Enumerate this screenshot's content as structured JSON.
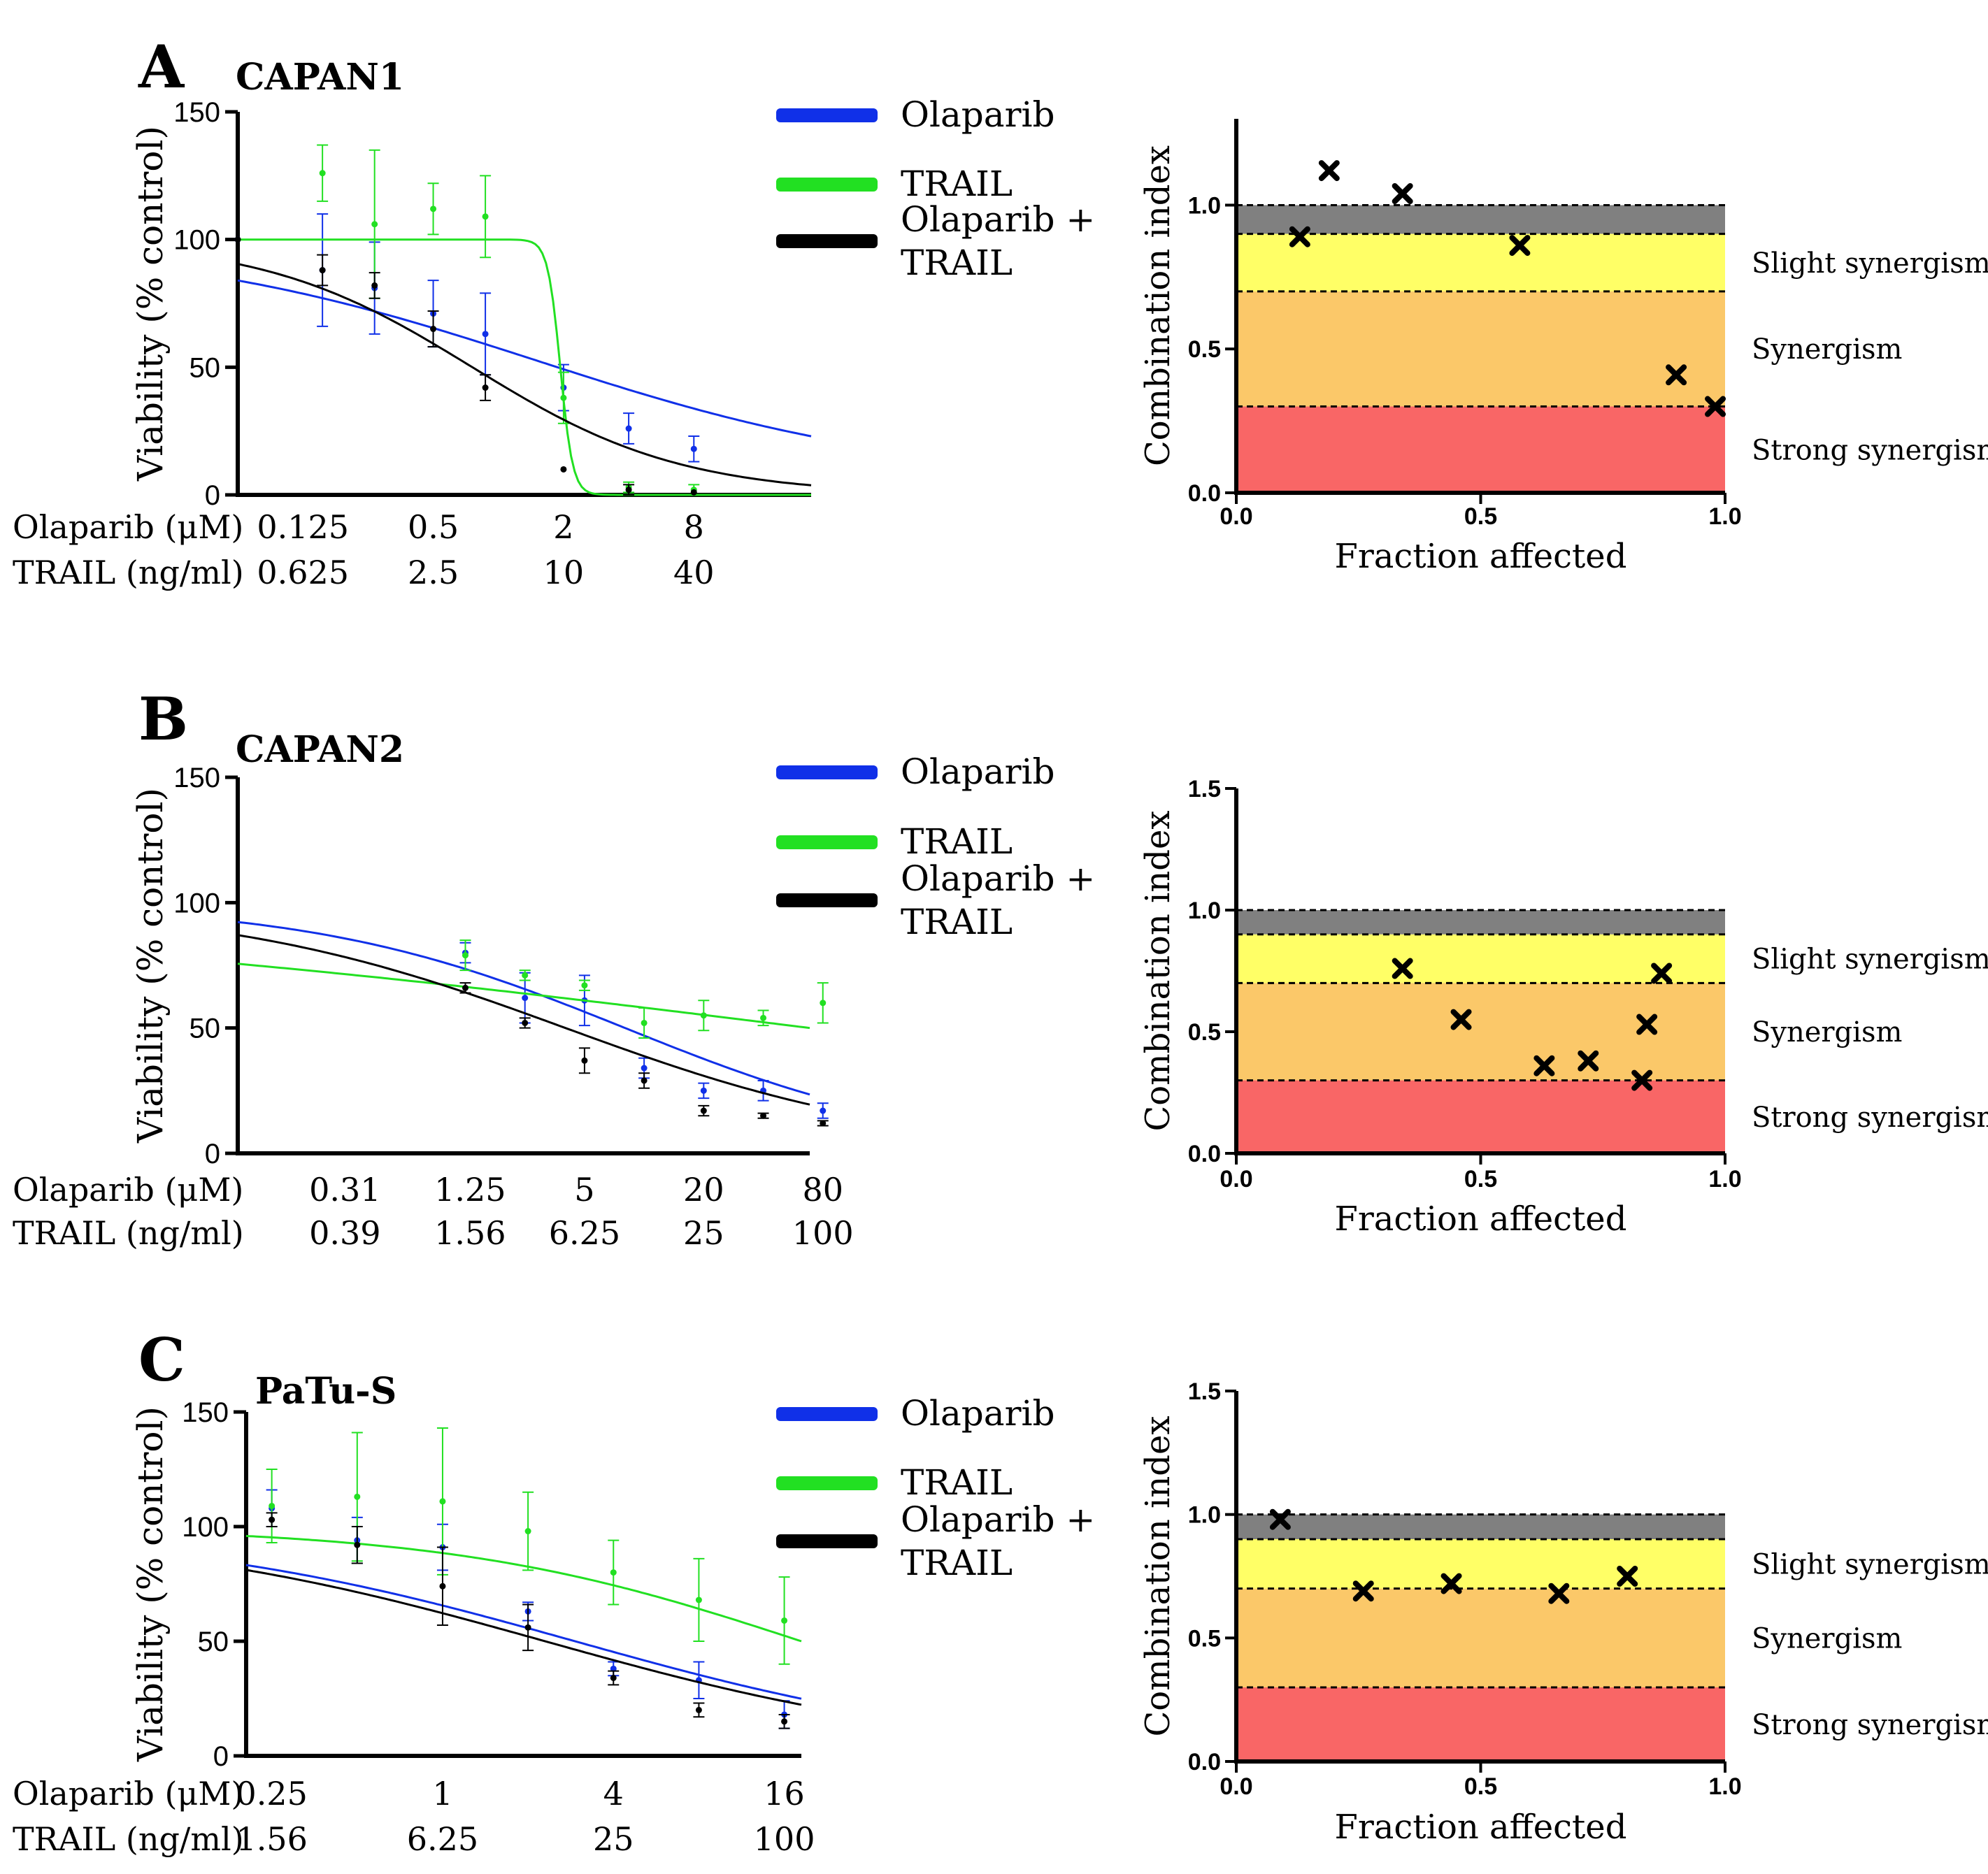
{
  "colors": {
    "olaparib": "#1030e8",
    "trail": "#22e022",
    "combo": "#000000",
    "band_additive": "#808080",
    "band_slight": "#ffff66",
    "band_synergism": "#fbc869",
    "band_strong": "#f96666"
  },
  "combination_labels": {
    "slight": "Slight synergism",
    "synergism": "Synergism",
    "strong": "Strong synergism"
  },
  "chart_data": [
    {
      "panel": "A",
      "cell_line": "CAPAN1",
      "dose_response": {
        "type": "line",
        "ylabel": "Viability (% control)",
        "ylim": [
          0,
          150
        ],
        "yticks": [
          0,
          50,
          100,
          150
        ],
        "xlim_log2_olaparib": [
          -4,
          4.8
        ],
        "legend": [
          "Olaparib",
          "TRAIL",
          "Olaparib +\nTRAIL"
        ],
        "dose_rows": [
          {
            "label": "Olaparib (μM)",
            "ticks": [
              {
                "t": "0.125",
                "x": -3
              },
              {
                "t": "0.5",
                "x": -1
              },
              {
                "t": "2",
                "x": 1
              },
              {
                "t": "8",
                "x": 3
              }
            ]
          },
          {
            "label": "TRAIL (ng/ml)",
            "ticks": [
              {
                "t": "0.625",
                "x": -3
              },
              {
                "t": "2.5",
                "x": -1
              },
              {
                "t": "10",
                "x": 1
              },
              {
                "t": "40",
                "x": 3
              }
            ]
          }
        ],
        "series": [
          {
            "name": "Olaparib",
            "key": "olaparib",
            "fit": {
              "top": 100,
              "bottom": 5,
              "logEC50": 0.6,
              "hill": 0.5
            },
            "points": [
              {
                "x": -4,
                "y": 100,
                "e": 0
              },
              {
                "x": -2.7,
                "y": 88,
                "e": 22
              },
              {
                "x": -1.9,
                "y": 81,
                "e": 18
              },
              {
                "x": -1,
                "y": 71,
                "e": 13
              },
              {
                "x": -0.2,
                "y": 63,
                "e": 16
              },
              {
                "x": 1,
                "y": 42,
                "e": 9
              },
              {
                "x": 2,
                "y": 26,
                "e": 6
              },
              {
                "x": 3,
                "y": 18,
                "e": 5
              }
            ]
          },
          {
            "name": "TRAIL",
            "key": "trail",
            "fit": {
              "top": 100,
              "bottom": 0,
              "logEC50": 0.95,
              "hill": 15
            },
            "points": [
              {
                "x": -2.7,
                "y": 126,
                "e": 11
              },
              {
                "x": -1.9,
                "y": 106,
                "e": 29
              },
              {
                "x": -1,
                "y": 112,
                "e": 10
              },
              {
                "x": -0.2,
                "y": 109,
                "e": 16
              },
              {
                "x": 1,
                "y": 38,
                "e": 10
              },
              {
                "x": 2,
                "y": 3,
                "e": 2
              },
              {
                "x": 3,
                "y": 2,
                "e": 2
              }
            ]
          },
          {
            "name": "Olaparib + TRAIL",
            "key": "combo",
            "fit": {
              "top": 100,
              "bottom": 0,
              "logEC50": -0.4,
              "hill": 0.9
            },
            "points": [
              {
                "x": -4,
                "y": 100,
                "e": 0
              },
              {
                "x": -2.7,
                "y": 88,
                "e": 6
              },
              {
                "x": -1.9,
                "y": 82,
                "e": 5
              },
              {
                "x": -1,
                "y": 65,
                "e": 7
              },
              {
                "x": -0.2,
                "y": 42,
                "e": 5
              },
              {
                "x": 1,
                "y": 10,
                "e": 0
              },
              {
                "x": 2,
                "y": 2,
                "e": 2
              },
              {
                "x": 3,
                "y": 1,
                "e": 0
              }
            ]
          }
        ]
      },
      "combination_index": {
        "type": "scatter",
        "xlabel": "Fraction affected",
        "ylabel": "Combination index",
        "xlim": [
          0,
          1
        ],
        "ylim": [
          0,
          1.3
        ],
        "xticks": [
          "0.0",
          "0.5",
          "1.0"
        ],
        "yticks": [
          "0.0",
          "0.5",
          "1.0"
        ],
        "points": [
          {
            "x": 0.13,
            "y": 0.89
          },
          {
            "x": 0.19,
            "y": 1.12
          },
          {
            "x": 0.34,
            "y": 1.04
          },
          {
            "x": 0.58,
            "y": 0.86
          },
          {
            "x": 0.9,
            "y": 0.41
          },
          {
            "x": 0.98,
            "y": 0.3
          }
        ]
      }
    },
    {
      "panel": "B",
      "cell_line": "CAPAN2",
      "dose_response": {
        "type": "line",
        "ylabel": "Viability (% control)",
        "ylim": [
          0,
          150
        ],
        "yticks": [
          0,
          50,
          100,
          150
        ],
        "xlim_log2_olaparib": [
          -3.5,
          6.1
        ],
        "legend": [
          "Olaparib",
          "TRAIL",
          "Olaparib +\nTRAIL"
        ],
        "dose_rows": [
          {
            "label": "Olaparib (μM)",
            "ticks": [
              {
                "t": "0.31",
                "x": -1.7
              },
              {
                "t": "1.25",
                "x": 0.4
              },
              {
                "t": "5",
                "x": 2.32
              },
              {
                "t": "20",
                "x": 4.32
              },
              {
                "t": "80",
                "x": 6.32
              }
            ]
          },
          {
            "label": "TRAIL (ng/ml)",
            "ticks": [
              {
                "t": "0.39",
                "x": -1.7
              },
              {
                "t": "1.56",
                "x": 0.4
              },
              {
                "t": "6.25",
                "x": 2.32
              },
              {
                "t": "25",
                "x": 4.32
              },
              {
                "t": "100",
                "x": 6.32
              }
            ]
          }
        ],
        "series": [
          {
            "name": "Olaparib",
            "key": "olaparib",
            "fit": {
              "top": 100,
              "bottom": 0,
              "logEC50": 3.0,
              "hill": 0.55
            },
            "points": [
              {
                "x": 0.32,
                "y": 80,
                "e": 4
              },
              {
                "x": 1.32,
                "y": 62,
                "e": 10
              },
              {
                "x": 2.32,
                "y": 61,
                "e": 10
              },
              {
                "x": 3.32,
                "y": 34,
                "e": 4
              },
              {
                "x": 4.32,
                "y": 25,
                "e": 3
              },
              {
                "x": 5.32,
                "y": 25,
                "e": 4
              },
              {
                "x": 6.32,
                "y": 17,
                "e": 3
              }
            ]
          },
          {
            "name": "TRAIL",
            "key": "trail",
            "fit": {
              "top": 100,
              "bottom": 0,
              "logEC50": 6.1,
              "hill": 0.17
            },
            "points": [
              {
                "x": 0.32,
                "y": 79,
                "e": 6
              },
              {
                "x": 1.32,
                "y": 71,
                "e": 2
              },
              {
                "x": 2.32,
                "y": 67,
                "e": 2
              },
              {
                "x": 3.32,
                "y": 52,
                "e": 6
              },
              {
                "x": 4.32,
                "y": 55,
                "e": 6
              },
              {
                "x": 5.32,
                "y": 54,
                "e": 3
              },
              {
                "x": 6.32,
                "y": 60,
                "e": 8
              }
            ]
          },
          {
            "name": "Olaparib + TRAIL",
            "key": "combo",
            "fit": {
              "top": 100,
              "bottom": 0,
              "logEC50": 2.0,
              "hill": 0.5
            },
            "points": [
              {
                "x": 0.32,
                "y": 66,
                "e": 2
              },
              {
                "x": 1.32,
                "y": 52,
                "e": 2
              },
              {
                "x": 2.32,
                "y": 37,
                "e": 5
              },
              {
                "x": 3.32,
                "y": 29,
                "e": 3
              },
              {
                "x": 4.32,
                "y": 17,
                "e": 2
              },
              {
                "x": 5.32,
                "y": 15,
                "e": 1
              },
              {
                "x": 6.32,
                "y": 12,
                "e": 1
              }
            ]
          }
        ]
      },
      "combination_index": {
        "type": "scatter",
        "xlabel": "Fraction affected",
        "ylabel": "Combination index",
        "xlim": [
          0,
          1
        ],
        "ylim": [
          0,
          1.5
        ],
        "xticks": [
          "0.0",
          "0.5",
          "1.0"
        ],
        "yticks": [
          "0.0",
          "0.5",
          "1.0",
          "1.5"
        ],
        "points": [
          {
            "x": 0.34,
            "y": 0.76
          },
          {
            "x": 0.46,
            "y": 0.55
          },
          {
            "x": 0.63,
            "y": 0.36
          },
          {
            "x": 0.72,
            "y": 0.38
          },
          {
            "x": 0.83,
            "y": 0.3
          },
          {
            "x": 0.84,
            "y": 0.53
          },
          {
            "x": 0.87,
            "y": 0.74
          }
        ]
      }
    },
    {
      "panel": "C",
      "cell_line": "PaTu-S",
      "dose_response": {
        "type": "line",
        "ylabel": "Viability (% control)",
        "ylim": [
          0,
          150
        ],
        "yticks": [
          0,
          50,
          100,
          150
        ],
        "xlim_log2_olaparib": [
          -2.3,
          4.2
        ],
        "legend": [
          "Olaparib",
          "TRAIL",
          "Olaparib +\nTRAIL"
        ],
        "dose_rows": [
          {
            "label": "Olaparib (μM)",
            "ticks": [
              {
                "t": "0.25",
                "x": -2
              },
              {
                "t": "1",
                "x": 0
              },
              {
                "t": "4",
                "x": 2
              },
              {
                "t": "16",
                "x": 4
              }
            ]
          },
          {
            "label": "TRAIL (ng/ml)",
            "ticks": [
              {
                "t": "1.56",
                "x": -2
              },
              {
                "t": "6.25",
                "x": 0
              },
              {
                "t": "25",
                "x": 2
              },
              {
                "t": "100",
                "x": 4
              }
            ]
          }
        ],
        "series": [
          {
            "name": "Olaparib",
            "key": "olaparib",
            "fit": {
              "top": 100,
              "bottom": 0,
              "logEC50": 1.55,
              "hill": 0.6
            },
            "points": [
              {
                "x": -2,
                "y": 108,
                "e": 8
              },
              {
                "x": -1,
                "y": 94,
                "e": 10
              },
              {
                "x": 0,
                "y": 91,
                "e": 10
              },
              {
                "x": 1,
                "y": 63,
                "e": 4
              },
              {
                "x": 2,
                "y": 38,
                "e": 3
              },
              {
                "x": 3,
                "y": 33,
                "e": 8
              },
              {
                "x": 4,
                "y": 18,
                "e": 6
              }
            ]
          },
          {
            "name": "TRAIL",
            "key": "trail",
            "fit": {
              "top": 100,
              "bottom": 0,
              "logEC50": 4.2,
              "hill": 0.7
            },
            "points": [
              {
                "x": -2,
                "y": 109,
                "e": 16
              },
              {
                "x": -1,
                "y": 113,
                "e": 28
              },
              {
                "x": 0,
                "y": 111,
                "e": 32
              },
              {
                "x": 1,
                "y": 98,
                "e": 17
              },
              {
                "x": 2,
                "y": 80,
                "e": 14
              },
              {
                "x": 3,
                "y": 68,
                "e": 18
              },
              {
                "x": 4,
                "y": 59,
                "e": 19
              }
            ]
          },
          {
            "name": "Olaparib + TRAIL",
            "key": "combo",
            "fit": {
              "top": 100,
              "bottom": 0,
              "logEC50": 1.2,
              "hill": 0.6
            },
            "points": [
              {
                "x": -2,
                "y": 103,
                "e": 3
              },
              {
                "x": -1,
                "y": 92,
                "e": 8
              },
              {
                "x": 0,
                "y": 74,
                "e": 17
              },
              {
                "x": 1,
                "y": 56,
                "e": 10
              },
              {
                "x": 2,
                "y": 34,
                "e": 3
              },
              {
                "x": 3,
                "y": 20,
                "e": 3
              },
              {
                "x": 4,
                "y": 15,
                "e": 3
              }
            ]
          }
        ]
      },
      "combination_index": {
        "type": "scatter",
        "xlabel": "Fraction affected",
        "ylabel": "Combination index",
        "xlim": [
          0,
          1
        ],
        "ylim": [
          0,
          1.5
        ],
        "xticks": [
          "0.0",
          "0.5",
          "1.0"
        ],
        "yticks": [
          "0.0",
          "0.5",
          "1.0",
          "1.5"
        ],
        "points": [
          {
            "x": 0.09,
            "y": 0.98
          },
          {
            "x": 0.26,
            "y": 0.69
          },
          {
            "x": 0.44,
            "y": 0.72
          },
          {
            "x": 0.66,
            "y": 0.68
          },
          {
            "x": 0.8,
            "y": 0.75
          }
        ]
      }
    }
  ]
}
